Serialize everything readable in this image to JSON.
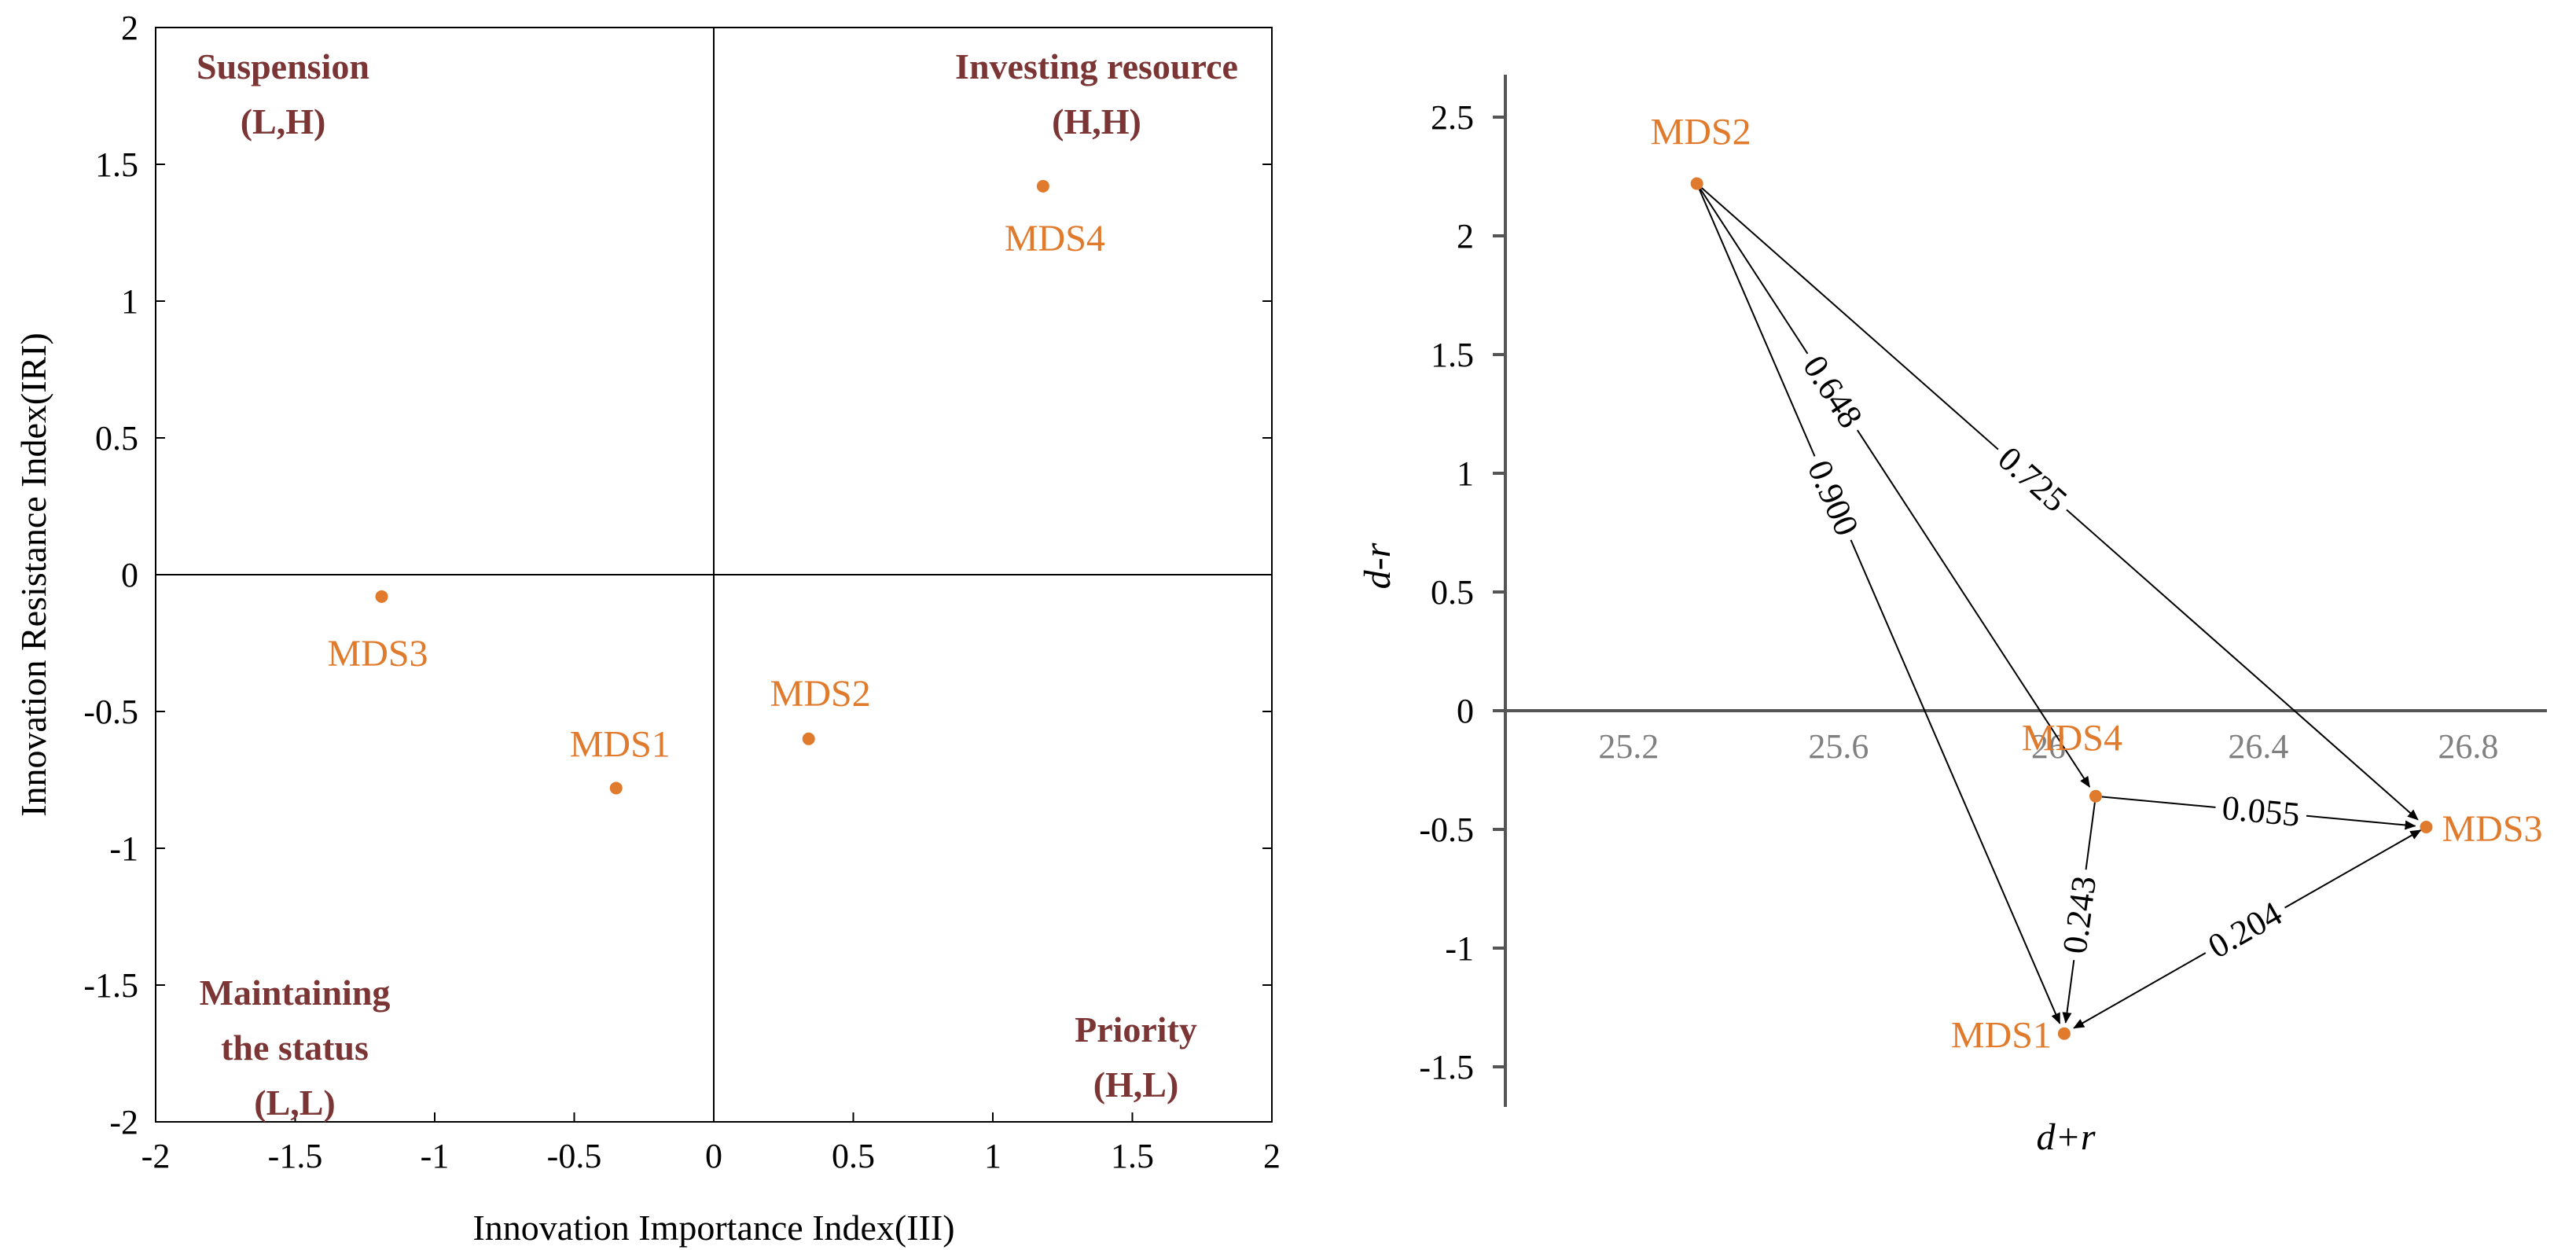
{
  "colors": {
    "point": "#e07a2c",
    "quadrant_text": "#7b3535"
  },
  "chart_data": [
    {
      "type": "scatter",
      "xlabel": "Innovation Importance Index(III)",
      "ylabel": "Innovation Resistance Index(IRI)",
      "xlim": [
        -2,
        2
      ],
      "ylim": [
        -2,
        2
      ],
      "x_ticks": [
        "-2",
        "-1.5",
        "-1",
        "-0.5",
        "0",
        "0.5",
        "1",
        "1.5",
        "2"
      ],
      "y_ticks": [
        "2",
        "1.5",
        "1",
        "0.5",
        "0",
        "-0.5",
        "-1",
        "-1.5",
        "-2"
      ],
      "points": [
        {
          "label": "MDS1",
          "x": -0.35,
          "y": -0.78
        },
        {
          "label": "MDS2",
          "x": 0.34,
          "y": -0.6
        },
        {
          "label": "MDS3",
          "x": -1.19,
          "y": -0.08
        },
        {
          "label": "MDS4",
          "x": 1.18,
          "y": 1.42
        }
      ],
      "quadrants": {
        "top_left": [
          "Suspension",
          "(L,H)"
        ],
        "top_right": [
          "Investing resource",
          "(H,H)"
        ],
        "bottom_left": [
          "Maintaining",
          "the status",
          "(L,L)"
        ],
        "bottom_right": [
          "Priority",
          "(H,L)"
        ]
      }
    },
    {
      "type": "scatter",
      "xlabel": "d+r",
      "ylabel": "d-r",
      "xlim": [
        24.95,
        26.95
      ],
      "ylim": [
        -1.65,
        2.6
      ],
      "x_ticks": [
        "25.2",
        "25.6",
        "26",
        "26.4",
        "26.8"
      ],
      "y_ticks": [
        "2.5",
        "2",
        "1.5",
        "1",
        "0.5",
        "0",
        "-0.5",
        "-1",
        "-1.5"
      ],
      "points": [
        {
          "label": "MDS1",
          "x": 26.03,
          "y": -1.36
        },
        {
          "label": "MDS2",
          "x": 25.33,
          "y": 2.22
        },
        {
          "label": "MDS3",
          "x": 26.72,
          "y": -0.49
        },
        {
          "label": "MDS4",
          "x": 26.09,
          "y": -0.36
        }
      ],
      "edges": [
        {
          "from": "MDS2",
          "to": "MDS1",
          "weight": "0.900"
        },
        {
          "from": "MDS2",
          "to": "MDS4",
          "weight": "0.648"
        },
        {
          "from": "MDS2",
          "to": "MDS3",
          "weight": "0.725"
        },
        {
          "from": "MDS4",
          "to": "MDS3",
          "weight": "0.055"
        },
        {
          "from": "MDS4",
          "to": "MDS1",
          "weight": "0.243"
        },
        {
          "from": "MDS3",
          "to": "MDS1",
          "weight": "0.204"
        }
      ]
    }
  ]
}
